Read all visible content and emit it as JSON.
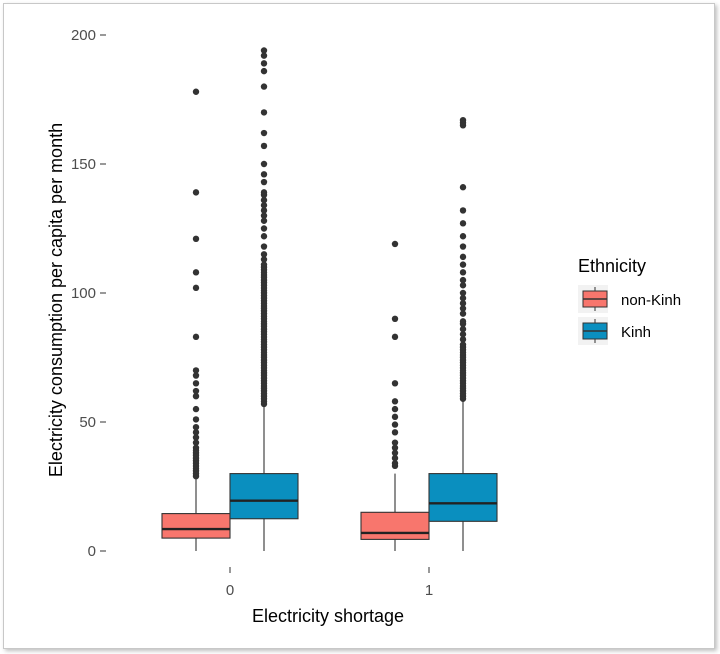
{
  "chart_data": {
    "type": "boxplot",
    "xlabel": "Electricity shortage",
    "ylabel": "Electricity consumption per capita per month",
    "ylim": [
      0,
      200
    ],
    "yticks": [
      0,
      50,
      100,
      150,
      200
    ],
    "categories": [
      "0",
      "1"
    ],
    "legend": {
      "title": "Ethnicity",
      "position": "right",
      "entries": [
        {
          "label": "non-Kinh",
          "color": "#F8766D"
        },
        {
          "label": "Kinh",
          "color": "#0A8FBF"
        }
      ]
    },
    "series": [
      {
        "name": "non-Kinh",
        "color": "#F8766D",
        "boxes": [
          {
            "category": "0",
            "min": 0,
            "q1": 5,
            "median": 8.5,
            "q3": 14.5,
            "max": 28,
            "outliers": [
              29,
              30,
              31,
              32,
              33,
              34,
              35,
              36,
              37,
              38,
              39,
              40,
              42,
              44,
              46,
              48,
              51,
              55,
              60,
              62,
              65,
              68,
              70,
              83,
              102,
              108,
              121,
              139,
              178
            ]
          },
          {
            "category": "1",
            "min": 0,
            "q1": 4.5,
            "median": 7,
            "q3": 15,
            "max": 30,
            "outliers": [
              33,
              34,
              36,
              38,
              40,
              42,
              46,
              49,
              52,
              55,
              58,
              65,
              83,
              90,
              119
            ]
          }
        ]
      },
      {
        "name": "Kinh",
        "color": "#0A8FBF",
        "boxes": [
          {
            "category": "0",
            "min": 0,
            "q1": 12.5,
            "median": 19.5,
            "q3": 30,
            "max": 56,
            "outliers": [
              57,
              58,
              59,
              60,
              61,
              62,
              63,
              64,
              65,
              66,
              67,
              68,
              69,
              70,
              71,
              72,
              73,
              74,
              75,
              76,
              77,
              78,
              79,
              80,
              81,
              82,
              83,
              84,
              85,
              86,
              87,
              88,
              89,
              90,
              91,
              92,
              93,
              94,
              95,
              96,
              97,
              98,
              99,
              100,
              101,
              102,
              103,
              104,
              105,
              106,
              107,
              108,
              109,
              110,
              111,
              113,
              115,
              118,
              122,
              125,
              128,
              130,
              132,
              134,
              136,
              138,
              139,
              143,
              146,
              150,
              157,
              162,
              170,
              180,
              186,
              189,
              192,
              194
            ]
          },
          {
            "category": "1",
            "min": 0,
            "q1": 11.5,
            "median": 18.5,
            "q3": 30,
            "max": 58,
            "outliers": [
              59,
              60,
              61,
              62,
              63,
              64,
              65,
              66,
              67,
              68,
              69,
              70,
              71,
              72,
              73,
              74,
              75,
              76,
              77,
              78,
              79,
              80,
              82,
              84,
              86,
              88,
              89,
              92,
              94,
              96,
              98,
              100,
              103,
              105,
              108,
              111,
              114,
              118,
              122,
              127,
              132,
              141,
              165,
              166,
              167
            ]
          }
        ]
      }
    ]
  }
}
